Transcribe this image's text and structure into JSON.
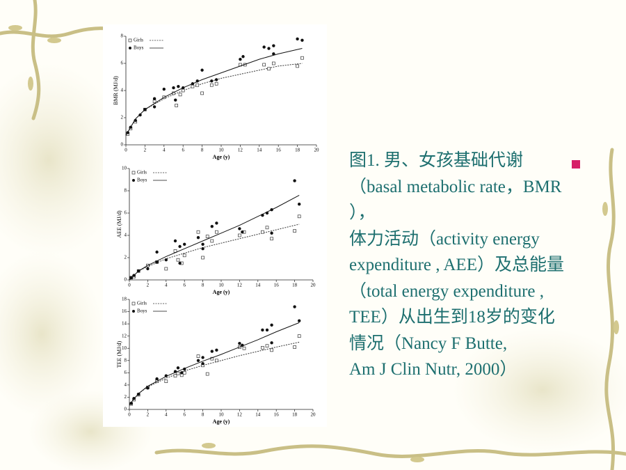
{
  "chart_data": [
    {
      "type": "scatter",
      "ylabel": "BMR (MJ/d)",
      "xlabel": "Age (y)",
      "xlim": [
        0,
        20
      ],
      "xticks": [
        0,
        2,
        4,
        6,
        8,
        10,
        12,
        14,
        16,
        18,
        20
      ],
      "ylim": [
        0,
        8
      ],
      "yticks": [
        0,
        2,
        4,
        6,
        8
      ],
      "series": [
        {
          "name": "Girls",
          "color": "#333333",
          "marker": "square",
          "line": "dotted",
          "x": [
            0.2,
            0.5,
            1,
            2,
            3,
            4,
            5,
            5.3,
            5.7,
            6,
            7,
            7.5,
            8,
            9,
            9.5,
            12,
            12.5,
            14.5,
            15,
            15.5,
            18,
            18.5
          ],
          "values": [
            0.8,
            1.2,
            1.7,
            2.6,
            3.2,
            3.5,
            3.8,
            2.9,
            3.7,
            4.0,
            4.3,
            4.4,
            3.8,
            4.4,
            4.5,
            5.9,
            5.9,
            5.9,
            5.6,
            6.0,
            5.8,
            6.4
          ],
          "fit_x": [
            0,
            1,
            2,
            4,
            6,
            8,
            10,
            12,
            14,
            16,
            18.5
          ],
          "fit": [
            0.7,
            1.9,
            2.6,
            3.4,
            4.0,
            4.5,
            4.9,
            5.2,
            5.5,
            5.8,
            6.0
          ]
        },
        {
          "name": "Boys",
          "color": "#111111",
          "marker": "circle",
          "line": "solid",
          "x": [
            0.2,
            0.5,
            1,
            1.5,
            2,
            3,
            3,
            4,
            5,
            5.2,
            5.5,
            6,
            7,
            7.5,
            8,
            9,
            9.5,
            12,
            12.3,
            14.5,
            15,
            15.5,
            15.5,
            18,
            18.5
          ],
          "values": [
            0.9,
            1.3,
            1.8,
            2.2,
            2.6,
            3.4,
            2.8,
            4.1,
            4.2,
            3.3,
            4.3,
            4.2,
            4.5,
            4.7,
            5.5,
            4.7,
            4.8,
            6.3,
            6.5,
            7.2,
            7.1,
            7.3,
            6.7,
            7.8,
            7.7
          ],
          "fit_x": [
            0,
            1,
            2,
            4,
            6,
            8,
            10,
            12,
            14,
            16,
            18.5
          ],
          "fit": [
            0.7,
            1.9,
            2.6,
            3.5,
            4.2,
            4.8,
            5.3,
            5.8,
            6.3,
            6.7,
            7.1
          ]
        }
      ]
    },
    {
      "type": "scatter",
      "ylabel": "AEE (MJ/d)",
      "xlabel": "Age (y)",
      "xlim": [
        0,
        20
      ],
      "xticks": [
        0,
        2,
        4,
        6,
        8,
        10,
        12,
        14,
        16,
        18,
        20
      ],
      "ylim": [
        0,
        10
      ],
      "yticks": [
        0,
        2,
        4,
        6,
        8,
        10
      ],
      "series": [
        {
          "name": "Girls",
          "color": "#333333",
          "marker": "square",
          "line": "dotted",
          "x": [
            0.2,
            0.5,
            1,
            2,
            3,
            4,
            5,
            5.3,
            5.7,
            6,
            7.5,
            8,
            8.5,
            9,
            9.5,
            12,
            12.5,
            14.5,
            15,
            15.5,
            18,
            18.5
          ],
          "values": [
            0.2,
            0.3,
            0.8,
            1.3,
            1.6,
            1.0,
            2.6,
            1.8,
            1.5,
            2.2,
            4.3,
            2.0,
            3.9,
            3.5,
            4.3,
            4.0,
            4.3,
            4.3,
            4.7,
            3.7,
            4.4,
            5.7
          ],
          "fit_x": [
            0,
            1,
            2,
            4,
            6,
            8,
            10,
            12,
            14,
            16,
            18.5
          ],
          "fit": [
            0,
            0.8,
            1.2,
            1.9,
            2.4,
            2.9,
            3.3,
            3.7,
            4.1,
            4.5,
            5.0
          ]
        },
        {
          "name": "Boys",
          "color": "#111111",
          "marker": "circle",
          "line": "solid",
          "x": [
            0.2,
            0.5,
            1,
            2,
            3,
            3,
            4,
            5,
            5.5,
            5.5,
            6,
            7.5,
            8,
            8,
            9,
            9.5,
            12,
            12.3,
            14.5,
            15,
            15.5,
            15.5,
            18,
            18.5
          ],
          "values": [
            0.2,
            0.4,
            0.8,
            1.0,
            2.5,
            1.6,
            1.8,
            3.5,
            3.0,
            1.5,
            3.2,
            3.8,
            3.2,
            2.8,
            4.8,
            5.1,
            4.6,
            4.3,
            5.8,
            6.0,
            6.3,
            4.2,
            8.9,
            6.8
          ],
          "fit_x": [
            0,
            1,
            2,
            4,
            6,
            8,
            10,
            12,
            14,
            16,
            18.5
          ],
          "fit": [
            0,
            0.8,
            1.3,
            2.1,
            2.8,
            3.5,
            4.2,
            4.9,
            5.7,
            6.5,
            7.6
          ]
        }
      ]
    },
    {
      "type": "scatter",
      "ylabel": "TEE (MJ/d)",
      "xlabel": "Age (y)",
      "xlim": [
        0,
        20
      ],
      "xticks": [
        0,
        2,
        4,
        6,
        8,
        10,
        12,
        14,
        16,
        18,
        20
      ],
      "ylim": [
        0,
        18
      ],
      "yticks": [
        0,
        2,
        4,
        6,
        8,
        10,
        12,
        14,
        16,
        18
      ],
      "series": [
        {
          "name": "Girls",
          "color": "#333333",
          "marker": "square",
          "line": "dotted",
          "x": [
            0.2,
            0.5,
            1,
            2,
            3,
            4,
            5,
            5.3,
            5.7,
            6,
            7.5,
            8,
            8.5,
            9,
            9.5,
            12,
            12.5,
            14.5,
            15,
            15.5,
            18,
            18.5
          ],
          "values": [
            0.9,
            1.6,
            2.4,
            3.6,
            4.6,
            4.6,
            5.5,
            5.9,
            5.6,
            6.0,
            8.7,
            7.2,
            5.8,
            8.3,
            8.0,
            10.2,
            10.0,
            10.1,
            10.4,
            9.7,
            10.2,
            12.0
          ],
          "fit_x": [
            0,
            1,
            2,
            4,
            6,
            8,
            10,
            12,
            14,
            16,
            18.5
          ],
          "fit": [
            0.8,
            2.6,
            3.7,
            5.1,
            6.3,
            7.2,
            8.0,
            8.8,
            9.5,
            10.2,
            11.0
          ]
        },
        {
          "name": "Boys",
          "color": "#111111",
          "marker": "circle",
          "line": "solid",
          "x": [
            0.2,
            0.5,
            1,
            2,
            3,
            4,
            5,
            5.3,
            5.7,
            6,
            7.5,
            8,
            8,
            9,
            9.5,
            12,
            12.3,
            14.5,
            15,
            15.5,
            15.5,
            18,
            18.5
          ],
          "values": [
            1.0,
            1.8,
            2.5,
            3.5,
            5.0,
            5.5,
            6.2,
            6.8,
            6.0,
            6.6,
            8.0,
            7.5,
            8.5,
            9.5,
            9.7,
            10.8,
            10.5,
            13.0,
            13.0,
            13.8,
            10.9,
            16.8,
            14.5
          ],
          "fit_x": [
            0,
            1,
            2,
            4,
            6,
            8,
            10,
            12,
            14,
            16,
            18.5
          ],
          "fit": [
            0.8,
            2.6,
            3.8,
            5.4,
            6.7,
            7.9,
            9.0,
            10.2,
            11.4,
            12.7,
            14.2
          ]
        }
      ]
    }
  ],
  "caption": [
    "图1.  男、女孩基础代谢",
    "（basal metabolic rate，BMR",
    "），",
    "体力活动（activity energy",
    "expenditure , AEE）及总能量",
    "（total energy expenditure ,",
    "TEE）从出生到18岁的变化",
    "情况（Nancy F Butte,",
    "Am J Clin Nutr, 2000）"
  ]
}
